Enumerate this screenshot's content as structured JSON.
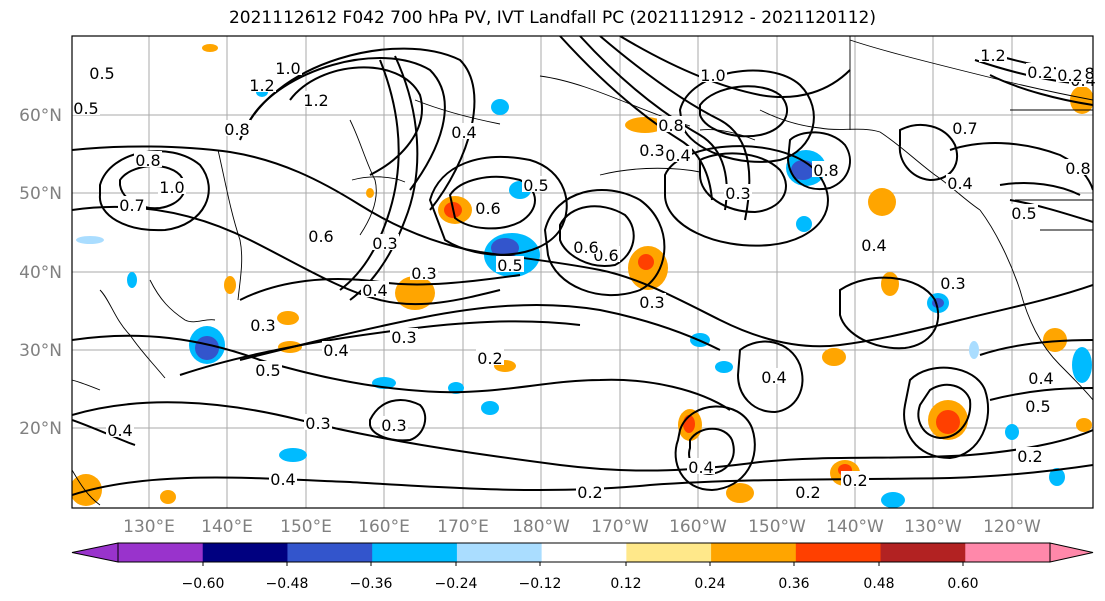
{
  "title": "2021112612 F042 700 hPa PV, IVT Landfall PC (2021112912 - 2021120112)",
  "longitude_labels": [
    "130°E",
    "140°E",
    "150°E",
    "160°E",
    "170°E",
    "180°W",
    "170°W",
    "160°W",
    "150°W",
    "140°W",
    "130°W",
    "120°W"
  ],
  "latitude_labels": [
    "60°N",
    "50°N",
    "40°N",
    "30°N",
    "20°N"
  ],
  "contour_labels": [
    "0.5",
    "1.2",
    "1.0",
    "0.5",
    "1.2",
    "0.8",
    "0.8",
    "1.0",
    "0.7",
    "0.4",
    "0.6",
    "0.3",
    "0.3",
    "0.4",
    "0.3",
    "0.5",
    "0.4",
    "0.3",
    "0.6",
    "0.5",
    "0.5",
    "0.6",
    "0.6",
    "0.3",
    "0.2",
    "0.2",
    "0.3",
    "0.3",
    "0.4",
    "0.4",
    "1.0",
    "0.8",
    "0.4",
    "0.3",
    "0.8",
    "0.4",
    "0.2",
    "0.4",
    "0.2",
    "0.4",
    "0.3",
    "0.4",
    "0.7",
    "0.4",
    "0.8",
    "0.5",
    "0.5",
    "0.4",
    "0.2",
    "1.2",
    "0.8",
    "0.3",
    "0.2",
    "0.2"
  ],
  "colorbar": {
    "colors": [
      "#9933cc",
      "#000080",
      "#3355cc",
      "#00bbff",
      "#aaddff",
      "#ffffff",
      "#ffe88a",
      "#ffa500",
      "#ff4000",
      "#b22222",
      "#ff88aa"
    ],
    "tick_labels": [
      "−0.60",
      "−0.48",
      "−0.36",
      "−0.24",
      "−0.12",
      "0.12",
      "0.24",
      "0.36",
      "0.48",
      "0.60"
    ]
  }
}
